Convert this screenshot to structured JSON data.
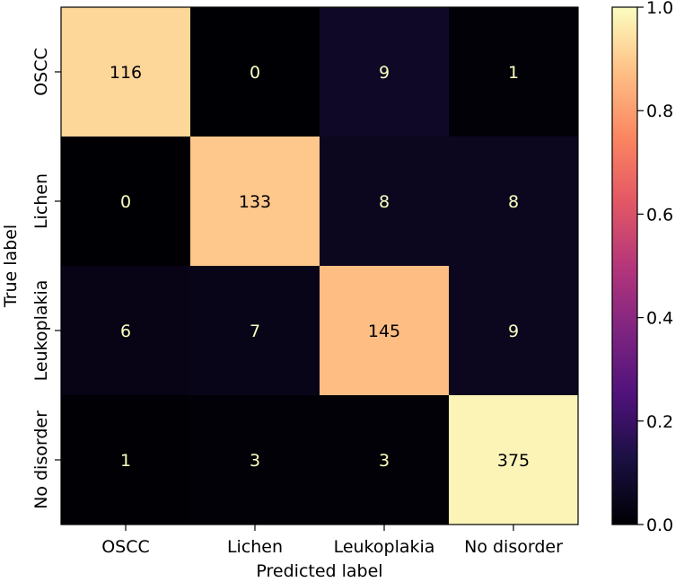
{
  "chart_data": {
    "type": "heatmap",
    "title": "",
    "xlabel": "Predicted label",
    "ylabel": "True label",
    "x_categories": [
      "OSCC",
      "Lichen",
      "Leukoplakia",
      "No disorder"
    ],
    "y_categories": [
      "OSCC",
      "Lichen",
      "Leukoplakia",
      "No disorder"
    ],
    "values": [
      [
        116,
        0,
        9,
        1
      ],
      [
        0,
        133,
        8,
        8
      ],
      [
        6,
        7,
        145,
        9
      ],
      [
        1,
        3,
        3,
        375
      ]
    ],
    "normalized_values": [
      [
        0.92,
        0.0,
        0.071,
        0.008
      ],
      [
        0.0,
        0.89,
        0.054,
        0.054
      ],
      [
        0.036,
        0.042,
        0.868,
        0.054
      ],
      [
        0.003,
        0.008,
        0.008,
        0.982
      ]
    ],
    "colormap": "magma",
    "colorbar": {
      "range": [
        0.0,
        1.0
      ],
      "ticks": [
        "0.0",
        "0.2",
        "0.4",
        "0.6",
        "0.8",
        "1.0"
      ]
    },
    "text_color_dark_cell": "#fcfdbf",
    "text_color_light_cell": "#000004"
  }
}
